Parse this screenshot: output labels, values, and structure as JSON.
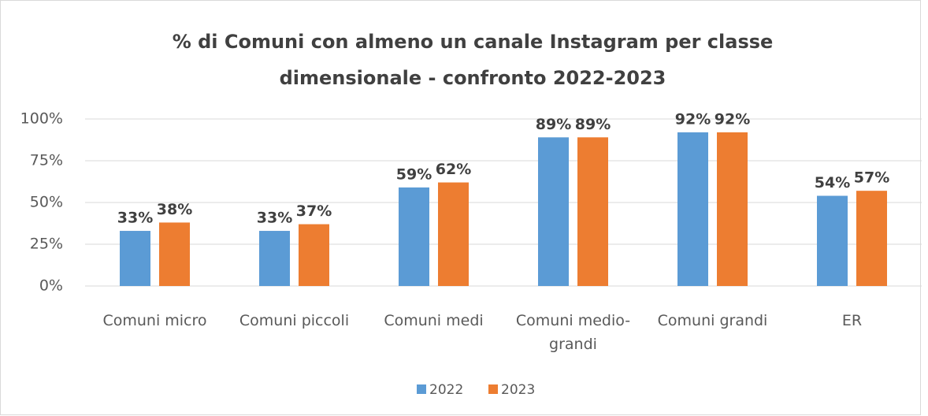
{
  "chart_data": {
    "type": "bar",
    "title": "% di Comuni con almeno un canale Instagram per classe dimensionale - confronto 2022-2023",
    "categories": [
      "Comuni micro",
      "Comuni piccoli",
      "Comuni medi",
      "Comuni medio-grandi",
      "Comuni grandi",
      "ER"
    ],
    "series": [
      {
        "name": "2022",
        "color": "#5b9bd5",
        "values": [
          33,
          33,
          59,
          89,
          92,
          54
        ],
        "value_labels": [
          "33%",
          "33%",
          "59%",
          "89%",
          "92%",
          "54%"
        ]
      },
      {
        "name": "2023",
        "color": "#ed7d31",
        "values": [
          38,
          37,
          62,
          89,
          92,
          57
        ],
        "value_labels": [
          "38%",
          "37%",
          "62%",
          "89%",
          "92%",
          "57%"
        ]
      }
    ],
    "ylim": [
      0,
      100
    ],
    "yticks": [
      {
        "value": 0,
        "label": "0%"
      },
      {
        "value": 25,
        "label": "25%"
      },
      {
        "value": 50,
        "label": "50%"
      },
      {
        "value": 75,
        "label": "75%"
      },
      {
        "value": 100,
        "label": "100%"
      }
    ],
    "grid": true,
    "legend": "bottom"
  }
}
